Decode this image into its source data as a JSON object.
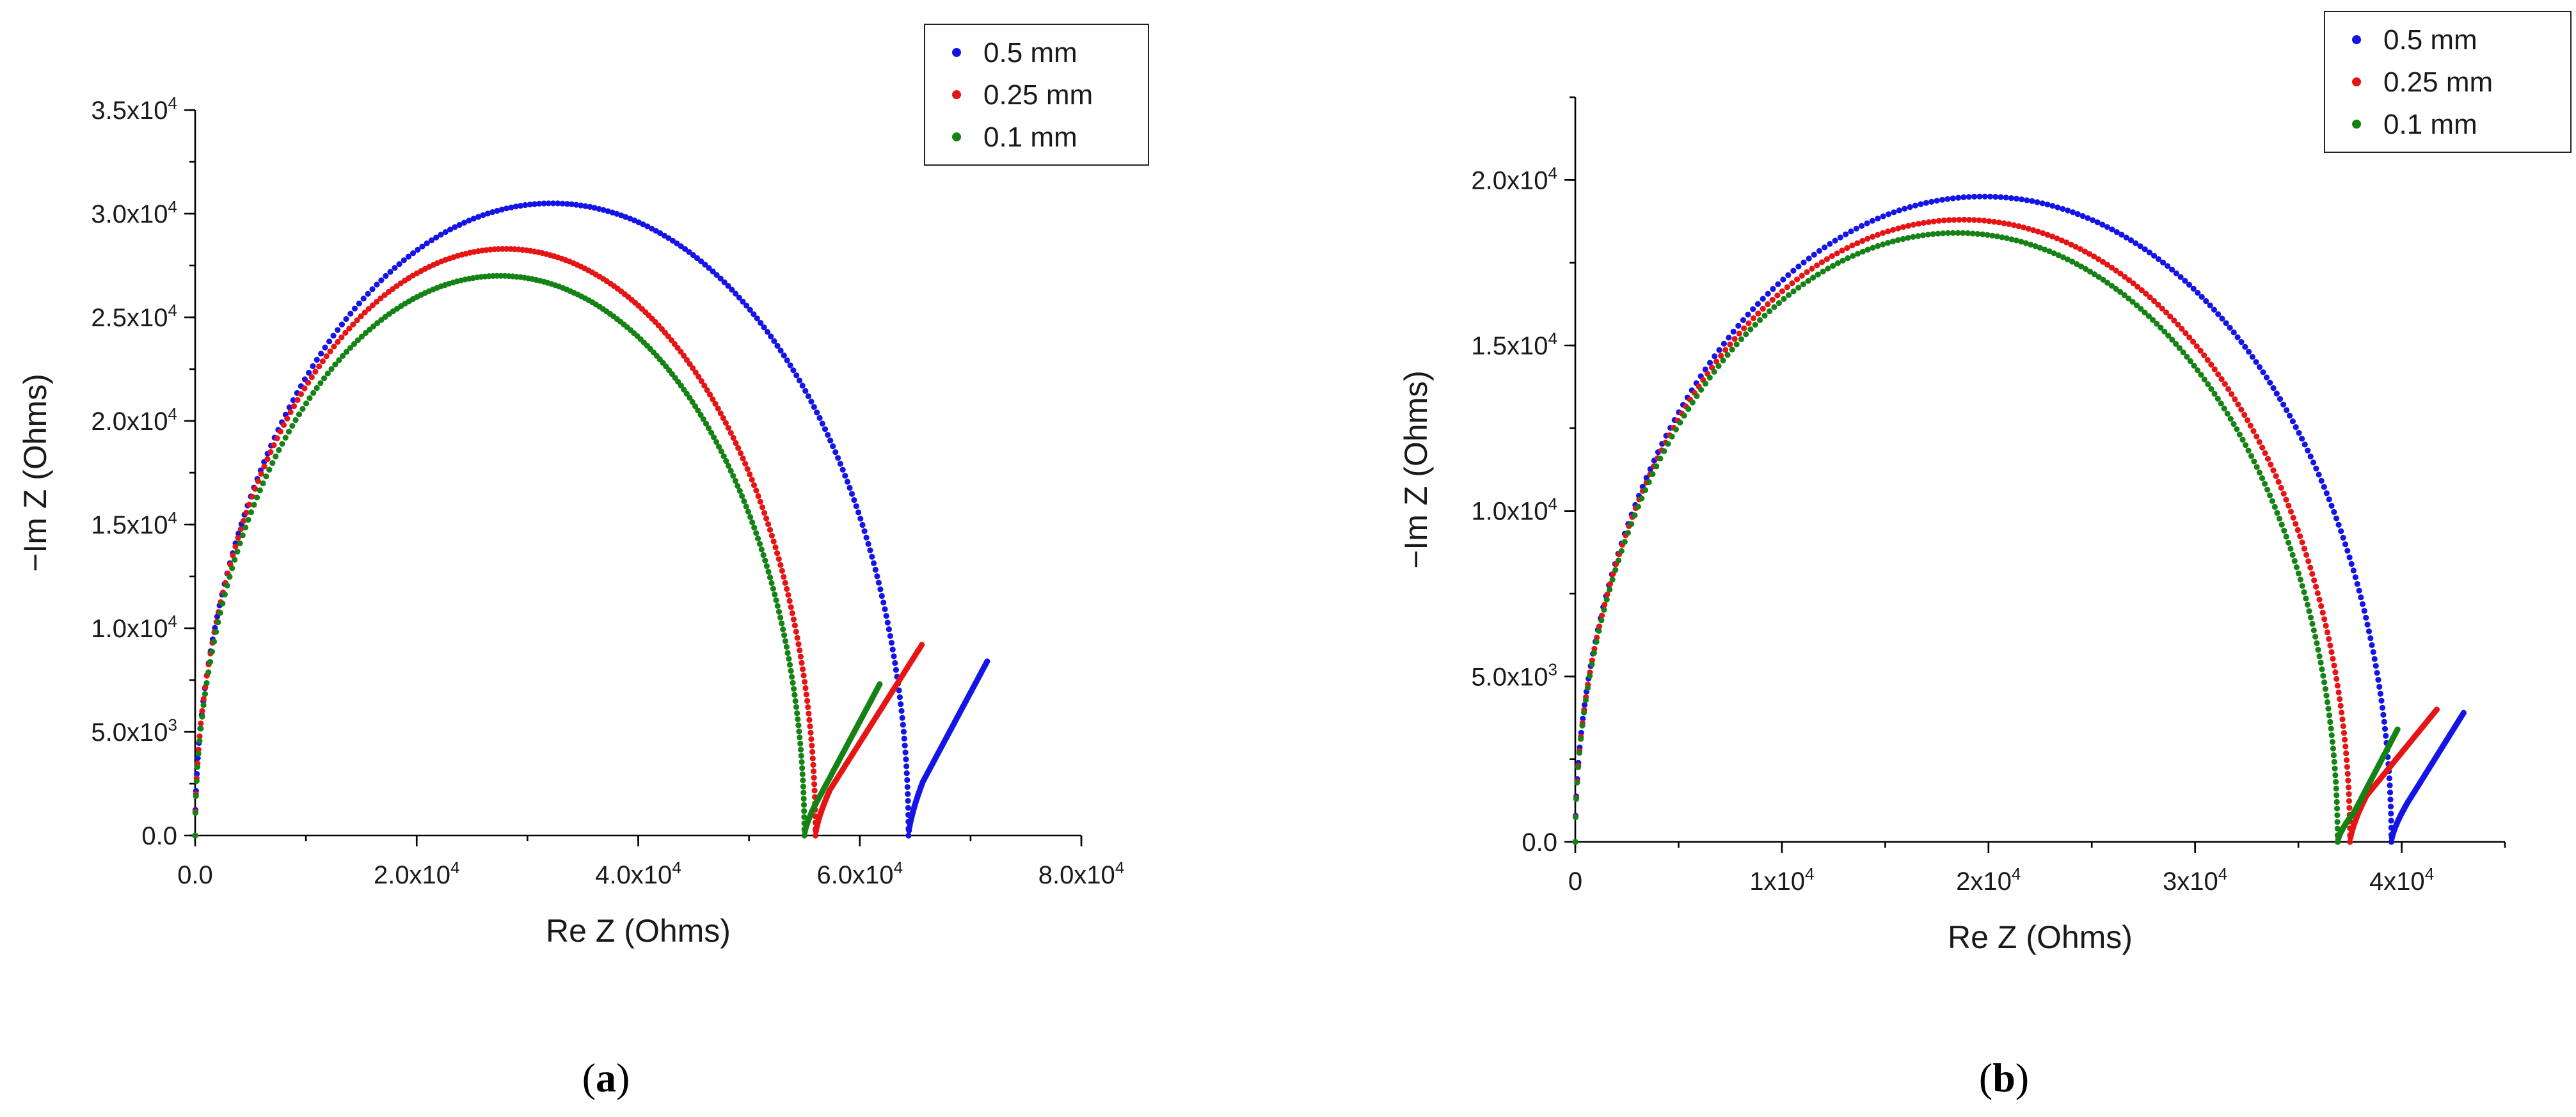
{
  "chart_data": [
    {
      "panel": "a",
      "type": "scatter",
      "caption_open": "(",
      "caption_letter": "a",
      "caption_close": ")",
      "xlabel": "Re Z (Ohms)",
      "ylabel": "−Im Z (Ohms)",
      "xlim": [
        0,
        80000
      ],
      "ylim": [
        0,
        35000
      ],
      "xticks": [
        {
          "value": 0,
          "mantissa": "0.0",
          "exp": ""
        },
        {
          "value": 20000,
          "mantissa": "2.0x10",
          "exp": "4"
        },
        {
          "value": 40000,
          "mantissa": "4.0x10",
          "exp": "4"
        },
        {
          "value": 60000,
          "mantissa": "6.0x10",
          "exp": "4"
        },
        {
          "value": 80000,
          "mantissa": "8.0x10",
          "exp": "4"
        }
      ],
      "yticks": [
        {
          "value": 0,
          "mantissa": "0.0",
          "exp": ""
        },
        {
          "value": 5000,
          "mantissa": "5.0x10",
          "exp": "3"
        },
        {
          "value": 10000,
          "mantissa": "1.0x10",
          "exp": "4"
        },
        {
          "value": 15000,
          "mantissa": "1.5x10",
          "exp": "4"
        },
        {
          "value": 20000,
          "mantissa": "2.0x10",
          "exp": "4"
        },
        {
          "value": 25000,
          "mantissa": "2.5x10",
          "exp": "4"
        },
        {
          "value": 30000,
          "mantissa": "3.0x10",
          "exp": "4"
        },
        {
          "value": 35000,
          "mantissa": "3.5x10",
          "exp": "4"
        }
      ],
      "series": [
        {
          "name": "0.5 mm",
          "color": "#1414e6",
          "rs": 0,
          "arc_end": 64400,
          "peak": 30500,
          "rmin": 65700,
          "ymin": 2600,
          "tail_x": 71500,
          "tail_y": 8400
        },
        {
          "name": "0.25 mm",
          "color": "#e61414",
          "rs": 0,
          "arc_end": 56000,
          "peak": 28300,
          "rmin": 57300,
          "ymin": 2200,
          "tail_x": 65600,
          "tail_y": 9200
        },
        {
          "name": "0.1 mm",
          "color": "#148214",
          "rs": 0,
          "arc_end": 55000,
          "peak": 27000,
          "rmin": 56500,
          "ymin": 2000,
          "tail_x": 61800,
          "tail_y": 7300
        }
      ]
    },
    {
      "panel": "b",
      "type": "scatter",
      "caption_open": "(",
      "caption_letter": "b",
      "caption_close": ")",
      "xlabel": "Re Z (Ohms)",
      "ylabel": "−Im Z (Ohms)",
      "xlim": [
        0,
        45000
      ],
      "ylim": [
        0,
        22500
      ],
      "xticks": [
        {
          "value": 0,
          "mantissa": "0",
          "exp": ""
        },
        {
          "value": 10000,
          "mantissa": "1x10",
          "exp": "4"
        },
        {
          "value": 20000,
          "mantissa": "2x10",
          "exp": "4"
        },
        {
          "value": 30000,
          "mantissa": "3x10",
          "exp": "4"
        },
        {
          "value": 40000,
          "mantissa": "4x10",
          "exp": "4"
        }
      ],
      "yticks": [
        {
          "value": 0,
          "mantissa": "0.0",
          "exp": ""
        },
        {
          "value": 5000,
          "mantissa": "5.0x10",
          "exp": "3"
        },
        {
          "value": 10000,
          "mantissa": "1.0x10",
          "exp": "4"
        },
        {
          "value": 15000,
          "mantissa": "1.5x10",
          "exp": "4"
        },
        {
          "value": 20000,
          "mantissa": "2.0x10",
          "exp": "4"
        }
      ],
      "series": [
        {
          "name": "0.5 mm",
          "color": "#1414e6",
          "rs": 0,
          "arc_end": 39500,
          "peak": 19500,
          "rmin": 40300,
          "ymin": 1200,
          "tail_x": 43000,
          "tail_y": 3900
        },
        {
          "name": "0.25 mm",
          "color": "#e61414",
          "rs": 0,
          "arc_end": 37500,
          "peak": 18800,
          "rmin": 38300,
          "ymin": 1400,
          "tail_x": 41700,
          "tail_y": 4000
        },
        {
          "name": "0.1 mm",
          "color": "#148214",
          "rs": 0,
          "arc_end": 36900,
          "peak": 18400,
          "rmin": 37700,
          "ymin": 900,
          "tail_x": 39800,
          "tail_y": 3400
        }
      ]
    }
  ]
}
